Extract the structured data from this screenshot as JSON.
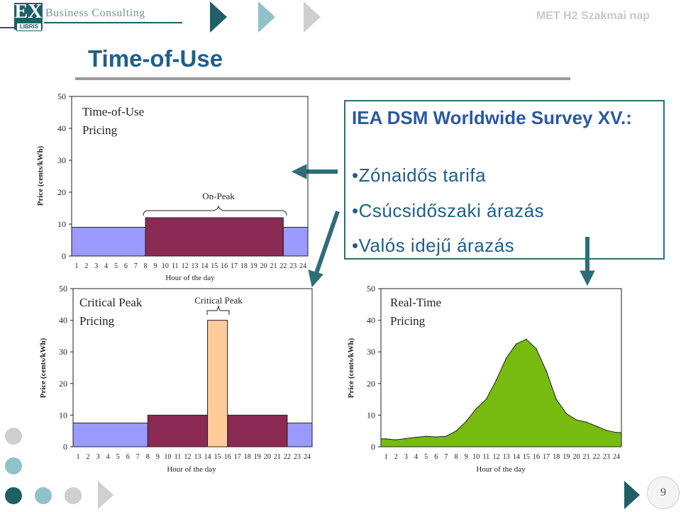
{
  "header": {
    "logo_mark": "EX",
    "logo_sub": "LIBRIS",
    "company": "Business Consulting",
    "event": "MET H2 Szakmai nap"
  },
  "slide": {
    "title": "Time-of-Use",
    "page_number": "9"
  },
  "survey": {
    "title": "IEA DSM Worldwide Survey XV.:",
    "bullets": [
      "•Zónaidős tarifa",
      "•Csúcsidőszaki árazás",
      "•Valós idejű árazás"
    ]
  },
  "colors": {
    "accent_dark": "#1f5f66",
    "title_blue": "#1f5f8a",
    "off_peak": "#9a9aff",
    "on_peak": "#8b2a52",
    "critical_peak": "#ffcc99",
    "real_time": "#77bb11",
    "arrow": "#2d6e78"
  },
  "chart_data": [
    {
      "type": "bar",
      "title": "Time-of-Use Pricing",
      "annotation": "On-Peak",
      "xlabel": "Hour of the day",
      "ylabel": "Price (cents/kWh)",
      "ylim": [
        0,
        50
      ],
      "yticks": [
        0,
        10,
        20,
        30,
        40,
        50
      ],
      "x": [
        1,
        2,
        3,
        4,
        5,
        6,
        7,
        8,
        9,
        10,
        11,
        12,
        13,
        14,
        15,
        16,
        17,
        18,
        19,
        20,
        21,
        22,
        23,
        24
      ],
      "series": [
        {
          "color": "#9a9aff",
          "blocks": [
            {
              "from": 0,
              "to": 7.5,
              "value": 9
            },
            {
              "from": 21.5,
              "to": 24,
              "value": 9
            }
          ]
        },
        {
          "color": "#8b2a52",
          "blocks": [
            {
              "from": 7.5,
              "to": 21.5,
              "value": 12
            }
          ]
        }
      ]
    },
    {
      "type": "bar",
      "title": "Critical Peak Pricing",
      "annotation": "Critical Peak",
      "xlabel": "Hour of the day",
      "ylabel": "Price (cents/kWh)",
      "ylim": [
        0,
        50
      ],
      "yticks": [
        0,
        10,
        20,
        30,
        40,
        50
      ],
      "x": [
        1,
        2,
        3,
        4,
        5,
        6,
        7,
        8,
        9,
        10,
        11,
        12,
        13,
        14,
        15,
        16,
        17,
        18,
        19,
        20,
        21,
        22,
        23,
        24
      ],
      "series": [
        {
          "color": "#9a9aff",
          "blocks": [
            {
              "from": 0,
              "to": 7.5,
              "value": 7.5
            },
            {
              "from": 21.5,
              "to": 24,
              "value": 7.5
            }
          ]
        },
        {
          "color": "#8b2a52",
          "blocks": [
            {
              "from": 7.5,
              "to": 13.5,
              "value": 10
            },
            {
              "from": 15.5,
              "to": 21.5,
              "value": 10
            }
          ]
        },
        {
          "color": "#ffcc99",
          "blocks": [
            {
              "from": 13.5,
              "to": 15.5,
              "value": 40
            }
          ]
        }
      ]
    },
    {
      "type": "area",
      "title": "Real-Time Pricing",
      "xlabel": "Hour of the day",
      "ylabel": "Price (cents/kWh)",
      "ylim": [
        0,
        50
      ],
      "yticks": [
        0,
        10,
        20,
        30,
        40,
        50
      ],
      "x": [
        1,
        2,
        3,
        4,
        5,
        6,
        7,
        8,
        9,
        10,
        11,
        12,
        13,
        14,
        15,
        16,
        17,
        18,
        19,
        20,
        21,
        22,
        23,
        24
      ],
      "series": [
        {
          "color": "#77bb11",
          "values": [
            2.5,
            2.2,
            2.6,
            3,
            3.3,
            3.1,
            3.3,
            5,
            8,
            12,
            15,
            21,
            28,
            32.5,
            34,
            31,
            24,
            15,
            10.5,
            8.5,
            7.8,
            6.5,
            5.2,
            4.5
          ]
        }
      ]
    }
  ]
}
